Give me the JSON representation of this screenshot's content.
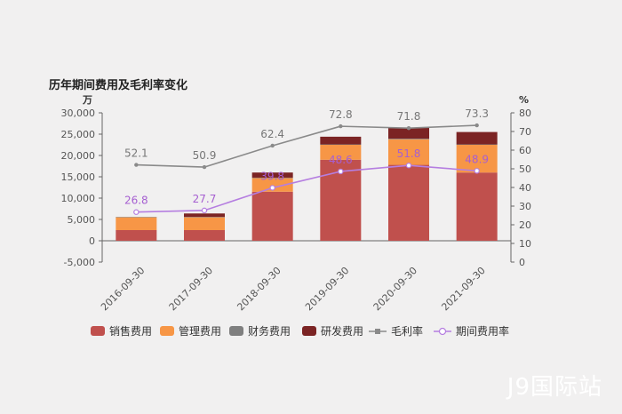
{
  "chart_data": {
    "type": "bar",
    "title": "历年期间费用及毛利率变化",
    "left_unit": "万",
    "right_unit": "%",
    "categories": [
      "2016-09-30",
      "2017-09-30",
      "2018-09-30",
      "2019-09-30",
      "2020-09-30",
      "2021-09-30"
    ],
    "left_ticks": [
      "30,000",
      "25,000",
      "20,000",
      "15,000",
      "10,000",
      "5,000",
      "0",
      "-5,000"
    ],
    "right_ticks": [
      "80",
      "70",
      "60",
      "50",
      "40",
      "30",
      "20",
      "10",
      "0"
    ],
    "ylim_left": [
      -5000,
      30000
    ],
    "ylim_right": [
      0,
      80
    ],
    "series": [
      {
        "name": "销售费用",
        "type": "bar",
        "color": "#c0504d",
        "values": [
          2500,
          2500,
          11500,
          19000,
          17800,
          16000
        ]
      },
      {
        "name": "管理费用",
        "type": "bar",
        "color": "#f79646",
        "values": [
          3000,
          3000,
          3200,
          3500,
          6000,
          6500
        ]
      },
      {
        "name": "财务费用",
        "type": "bar",
        "color": "#7f7f7f",
        "values": [
          100,
          100,
          100,
          100,
          150,
          100
        ]
      },
      {
        "name": "研发费用",
        "type": "bar",
        "color": "#7b2424",
        "values": [
          0,
          800,
          1200,
          1800,
          2600,
          2900
        ]
      },
      {
        "name": "毛利率",
        "type": "line",
        "color": "#8a8a8a",
        "values": [
          52.1,
          50.9,
          62.4,
          72.8,
          71.8,
          73.3
        ],
        "labels": [
          "52.1",
          "50.9",
          "62.4",
          "72.8",
          "71.8",
          "73.3"
        ]
      },
      {
        "name": "期间费用率",
        "type": "line",
        "color": "#b57ee0",
        "values": [
          26.8,
          27.7,
          39.8,
          48.6,
          51.8,
          48.9
        ],
        "labels": [
          "26.8",
          "27.7",
          "39.8",
          "48.6",
          "51.8",
          "48.9"
        ]
      }
    ],
    "legend_position": "bottom",
    "grid": false
  },
  "watermark": "J9国际站"
}
